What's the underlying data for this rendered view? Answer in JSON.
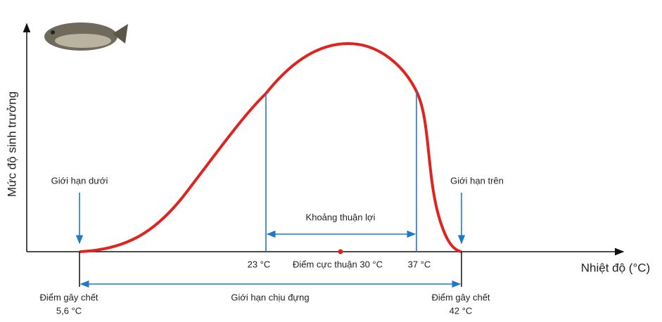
{
  "y_axis_label": "Mức độ sinh trưởng",
  "x_axis_label": "Nhiệt độ (°C)",
  "lower_limit": {
    "label": "Giới hạn dưới",
    "death_point": "Điểm gây chết",
    "temperature": "5,6 °C"
  },
  "upper_limit": {
    "label": "Giới hạn trên",
    "death_point": "Điểm gây chết",
    "temperature": "42 °C"
  },
  "favorable_range": {
    "label": "Khoảng thuận lợi",
    "start": "23 °C",
    "end": "37 °C"
  },
  "optimum": "Điểm cực thuận 30 °C",
  "tolerance_range": "Giới hạn chịu đựng"
}
